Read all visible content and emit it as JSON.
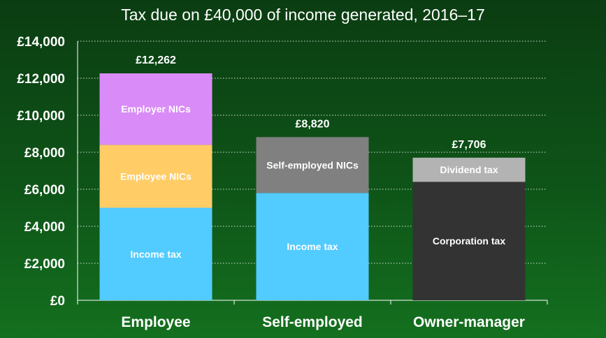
{
  "chart_data": {
    "type": "bar",
    "stacked": true,
    "title": "Tax due on £40,000 of income generated, 2016–17",
    "xlabel": "",
    "ylabel": "",
    "ylim": [
      0,
      14000
    ],
    "y_ticks": [
      0,
      2000,
      4000,
      6000,
      8000,
      10000,
      12000,
      14000
    ],
    "y_tick_labels": [
      "£0",
      "£2,000",
      "£4,000",
      "£6,000",
      "£8,000",
      "£10,000",
      "£12,000",
      "£14,000"
    ],
    "grid": true,
    "legend": "none",
    "categories": [
      "Employee",
      "Self-employed",
      "Owner-manager"
    ],
    "totals": [
      "£12,262",
      "£8,820",
      "£7,706"
    ],
    "bars": [
      {
        "category": "Employee",
        "segments": [
          {
            "label": "Income tax",
            "value": 5000,
            "color": "#52cbff"
          },
          {
            "label": "Employee NICs",
            "value": 3400,
            "color": "#ffcc66"
          },
          {
            "label": "Employer NICs",
            "value": 3862,
            "color": "#d98cf7"
          }
        ]
      },
      {
        "category": "Self-employed",
        "segments": [
          {
            "label": "Income tax",
            "value": 5800,
            "color": "#52cbff"
          },
          {
            "label": "Self-employed NICs",
            "value": 3020,
            "color": "#808080"
          }
        ]
      },
      {
        "category": "Owner-manager",
        "segments": [
          {
            "label": "Corporation tax",
            "value": 6400,
            "color": "#333333"
          },
          {
            "label": "Dividend tax",
            "value": 1306,
            "color": "#b3b3b3"
          }
        ]
      }
    ]
  }
}
